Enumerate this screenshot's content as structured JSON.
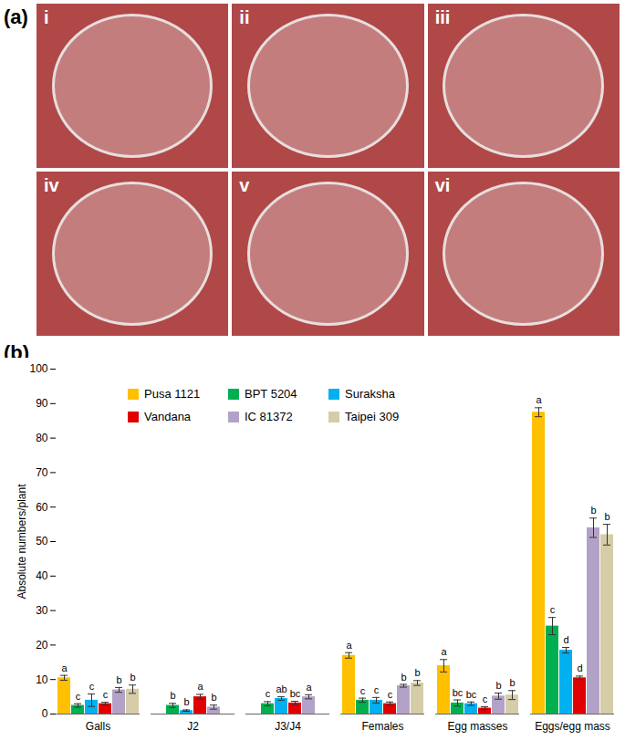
{
  "panel_a": {
    "label": "(a)",
    "tiles": [
      "i",
      "ii",
      "iii",
      "iv",
      "v",
      "vi"
    ]
  },
  "chart_data": {
    "type": "bar",
    "panel_label": "(b)",
    "ylabel": "Absolute numbers/plant",
    "categories": [
      "Galls",
      "J2",
      "J3/J4",
      "Females",
      "Egg masses",
      "Eggs/egg mass"
    ],
    "series": [
      {
        "name": "Pusa 1121",
        "color": "#FFC000",
        "values": [
          10.5,
          0,
          0,
          17,
          14,
          87.5
        ],
        "errors": [
          0.7,
          0,
          0,
          0.8,
          1.8,
          1.3
        ],
        "letters": [
          "a",
          null,
          null,
          "a",
          "a",
          "a"
        ]
      },
      {
        "name": "BPT 5204",
        "color": "#00B050",
        "values": [
          2.5,
          2.5,
          3,
          4,
          3.2,
          25.5
        ],
        "errors": [
          0.5,
          0.6,
          0.6,
          0.6,
          0.9,
          2.5
        ],
        "letters": [
          "c",
          "b",
          "c",
          "c",
          "bc",
          "c"
        ]
      },
      {
        "name": "Suraksha",
        "color": "#00B0F0",
        "values": [
          4,
          1,
          4.5,
          4,
          3,
          18.5
        ],
        "errors": [
          1.8,
          0.2,
          0.5,
          0.8,
          0.5,
          0.8
        ],
        "letters": [
          "c",
          "b",
          "ab",
          "c",
          "bc",
          "d"
        ]
      },
      {
        "name": "Vandana",
        "color": "#E00000",
        "values": [
          3,
          5,
          3.2,
          3,
          1.7,
          10.5
        ],
        "errors": [
          0.4,
          0.7,
          0.5,
          0.5,
          0.4,
          0.5
        ],
        "letters": [
          "c",
          "a",
          "bc",
          "c",
          "c",
          "d"
        ]
      },
      {
        "name": "IC 81372",
        "color": "#B3A2C7",
        "values": [
          7,
          2,
          5,
          8.2,
          5.2,
          54
        ],
        "errors": [
          0.7,
          0.6,
          0.6,
          0.4,
          0.9,
          2.8
        ],
        "letters": [
          "b",
          "b",
          "a",
          "b",
          "b",
          "b"
        ]
      },
      {
        "name": "Taipei 309",
        "color": "#D5CCA8",
        "values": [
          7.2,
          0,
          0,
          9,
          5.5,
          52
        ],
        "errors": [
          1.2,
          0,
          0,
          0.7,
          1.3,
          3.0
        ],
        "letters": [
          "b",
          null,
          null,
          "b",
          "b",
          "b"
        ]
      }
    ],
    "ylim": [
      0,
      100
    ],
    "yticks": [
      0,
      10,
      20,
      30,
      40,
      50,
      60,
      70,
      80,
      90,
      100
    ],
    "grid": false,
    "legend": "top"
  }
}
